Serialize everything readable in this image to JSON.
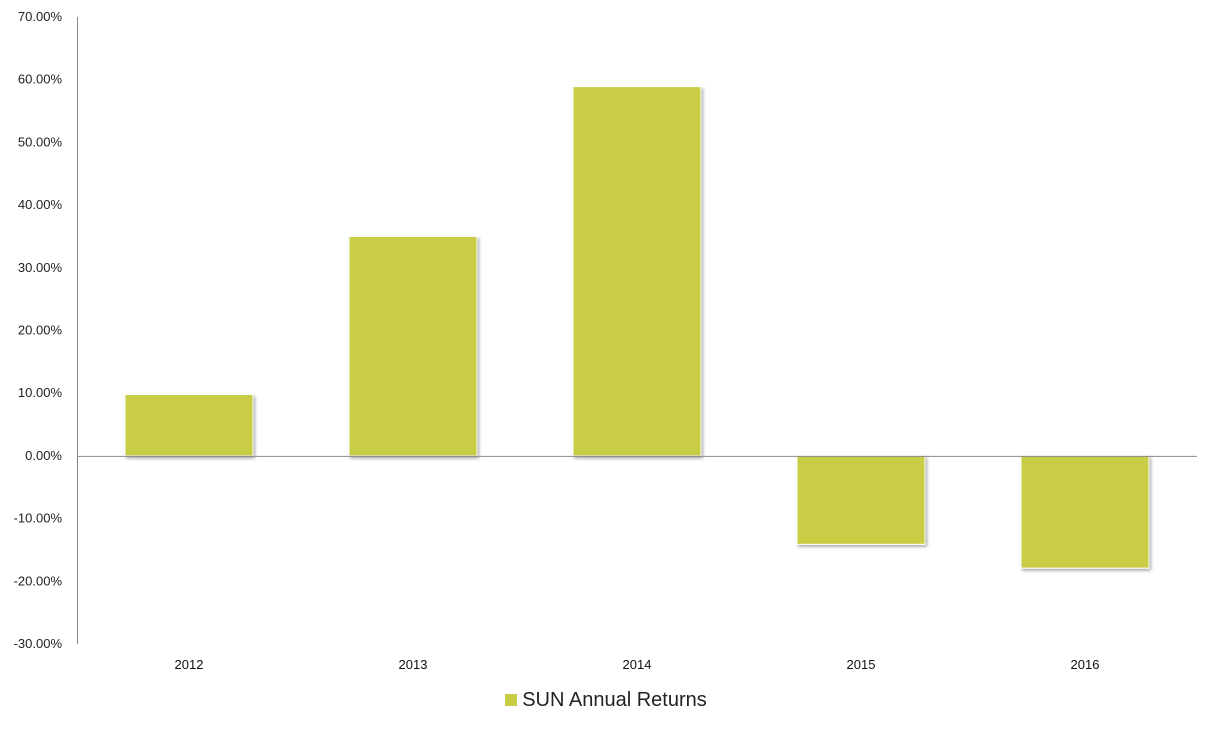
{
  "chart_data": {
    "type": "bar",
    "title": "",
    "xlabel": "",
    "ylabel": "",
    "categories": [
      "2012",
      "2013",
      "2014",
      "2015",
      "2016"
    ],
    "series": [
      {
        "name": "SUN Annual Returns",
        "values": [
          9.8,
          35.0,
          58.9,
          -14.1,
          -17.9
        ],
        "color": "#c9cd44"
      }
    ],
    "ylim": [
      -30,
      70
    ],
    "yticks": [
      70,
      60,
      50,
      40,
      30,
      20,
      10,
      0,
      -10,
      -20,
      -30
    ],
    "ytick_labels": [
      "70.00%",
      "60.00%",
      "50.00%",
      "40.00%",
      "30.00%",
      "20.00%",
      "10.00%",
      "0.00%",
      "-10.00%",
      "-20.00%",
      "-30.00%"
    ],
    "grid": false,
    "legend_position": "bottom"
  }
}
